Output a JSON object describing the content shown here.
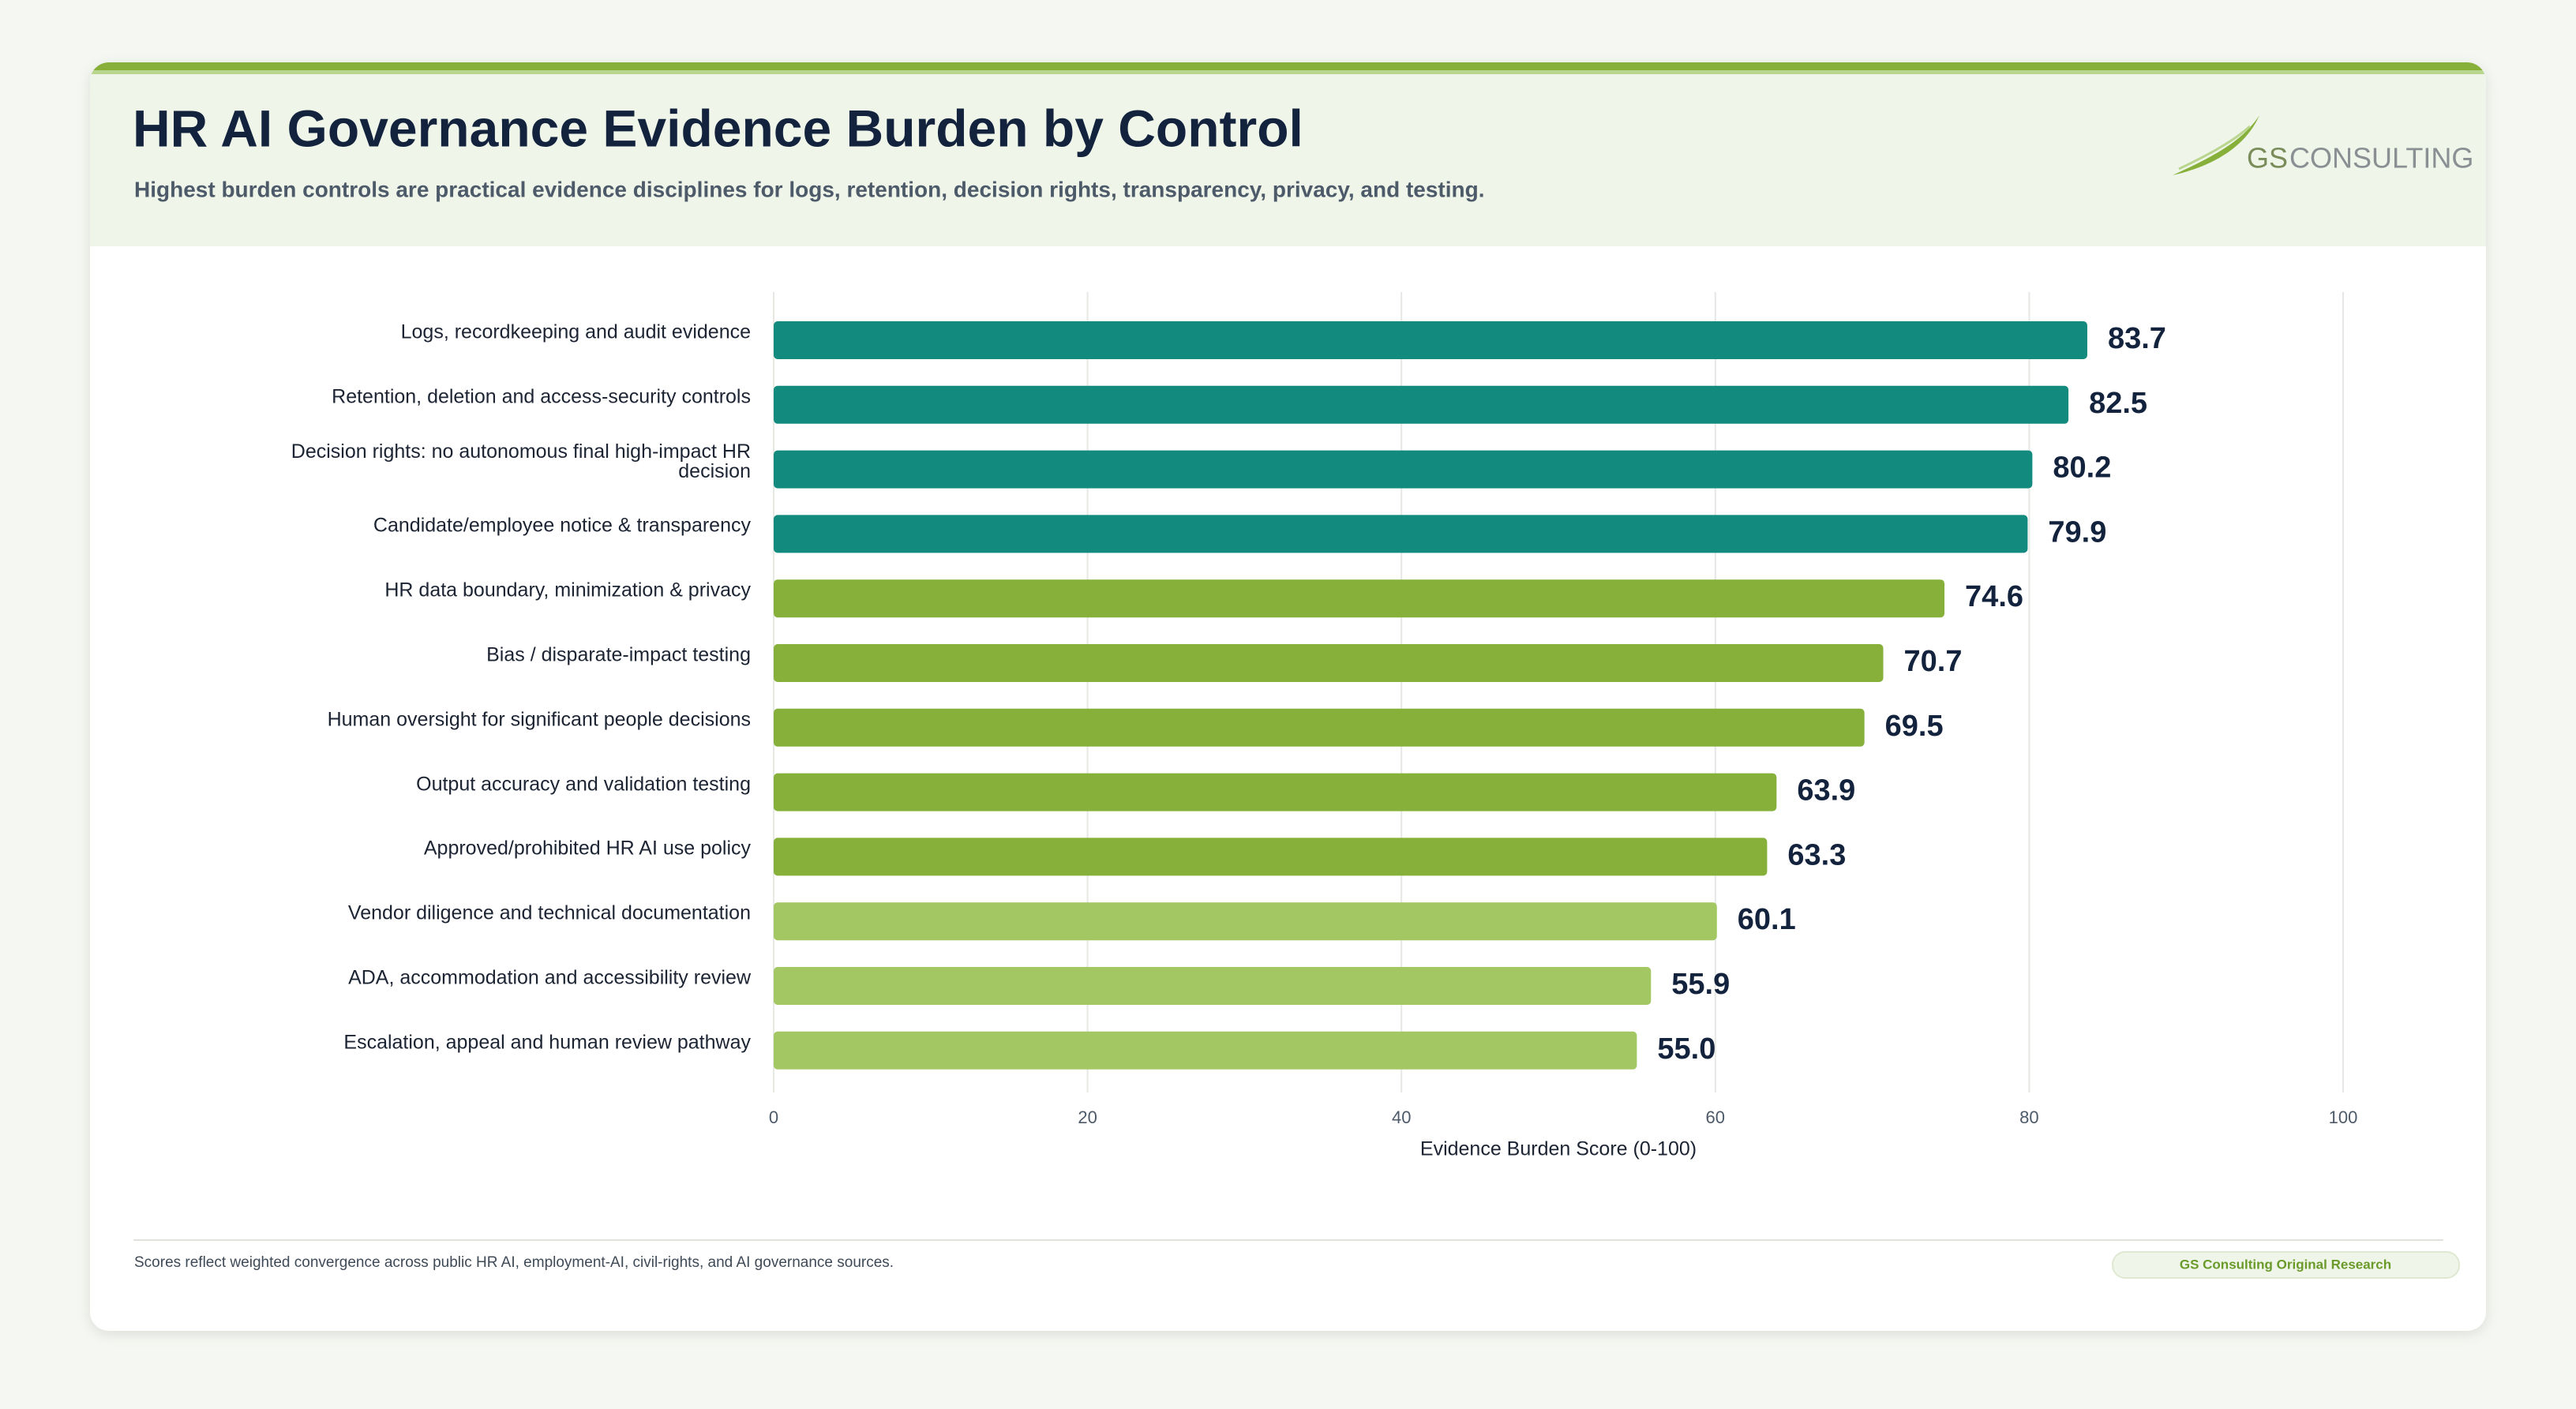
{
  "chart_data": {
    "type": "bar",
    "orientation": "horizontal",
    "title": "HR AI Governance Evidence Burden by Control",
    "subtitle": "Highest burden controls are practical evidence disciplines for logs, retention, decision rights, transparency, privacy, and testing.",
    "logo": {
      "mark": "GS",
      "name": "CONSULTING"
    },
    "categories": [
      "Logs, recordkeeping and audit evidence",
      "Retention, deletion and access-security controls",
      "Decision rights: no autonomous final high-impact HR decision",
      "Candidate/employee notice & transparency",
      "HR data boundary, minimization & privacy",
      "Bias / disparate-impact testing",
      "Human oversight for significant people decisions",
      "Output accuracy and validation testing",
      "Approved/prohibited HR AI use policy",
      "Vendor diligence and technical documentation",
      "ADA, accommodation and accessibility review",
      "Escalation, appeal and human review pathway"
    ],
    "values": [
      83.7,
      82.5,
      80.2,
      79.9,
      74.6,
      70.7,
      69.5,
      63.9,
      63.3,
      60.1,
      55.9,
      55.0
    ],
    "value_labels": [
      "83.7",
      "82.5",
      "80.2",
      "79.9",
      "74.6",
      "70.7",
      "69.5",
      "63.9",
      "63.3",
      "60.1",
      "55.9",
      "55.0"
    ],
    "colors": [
      "#138a7e",
      "#138a7e",
      "#138a7e",
      "#138a7e",
      "#86b03a",
      "#86b03a",
      "#86b03a",
      "#86b03a",
      "#86b03a",
      "#a3c763",
      "#a3c763",
      "#a3c763"
    ],
    "xlim": [
      0,
      100
    ],
    "xticks": [
      0,
      20,
      40,
      60,
      80,
      100
    ],
    "xlabel": "Evidence Burden Score (0-100)",
    "grid": true,
    "footnote": "Scores reflect weighted convergence across public HR AI, employment-AI, civil-rights, and AI governance sources.",
    "badge": "GS Consulting Original Research"
  }
}
